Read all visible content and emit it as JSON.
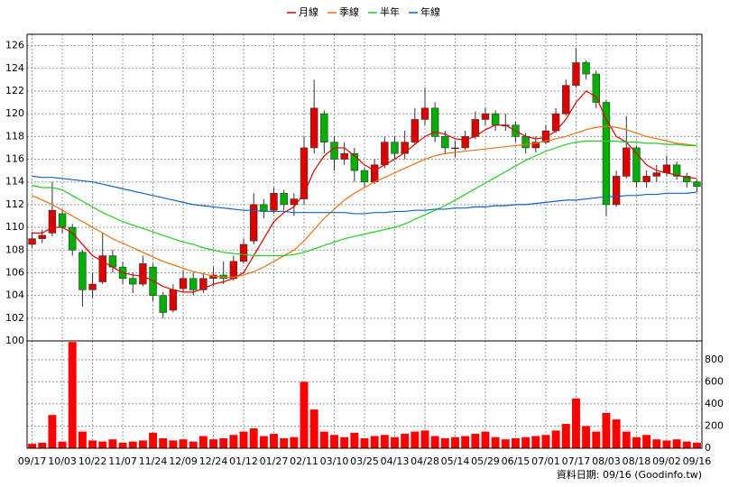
{
  "chart_data": [
    {
      "type": "candlestick",
      "categories": [
        "09/17",
        null,
        null,
        "10/03",
        null,
        null,
        "10/22",
        null,
        null,
        "11/07",
        null,
        null,
        "11/24",
        null,
        null,
        "12/09",
        null,
        null,
        "12/24",
        null,
        null,
        "01/12",
        null,
        null,
        "01/27",
        null,
        null,
        "02/11",
        null,
        null,
        "03/10",
        null,
        null,
        "03/25",
        null,
        null,
        "04/13",
        null,
        null,
        "04/28",
        null,
        null,
        "05/14",
        null,
        null,
        "05/29",
        null,
        null,
        "06/15",
        null,
        null,
        "07/01",
        null,
        null,
        "07/17",
        null,
        null,
        "08/03",
        null,
        null,
        "08/18",
        null,
        null,
        "09/02",
        null,
        null,
        "09/16"
      ],
      "ohlc": [
        [
          108.5,
          109.6,
          108.2,
          109
        ],
        [
          109,
          109.8,
          108.6,
          109.3
        ],
        [
          109.5,
          114,
          109.2,
          111.5
        ],
        [
          111.2,
          111.6,
          109.5,
          110
        ],
        [
          110,
          110.3,
          107.5,
          108
        ],
        [
          107.8,
          108,
          103,
          104.5
        ],
        [
          104.5,
          106,
          103.8,
          105
        ],
        [
          105.2,
          109.5,
          105,
          107.5
        ],
        [
          107.5,
          108,
          106,
          106.5
        ],
        [
          106.5,
          107,
          105,
          105.5
        ],
        [
          105.5,
          106,
          104.2,
          105
        ],
        [
          105,
          107.5,
          104.8,
          106.8
        ],
        [
          106.5,
          106.8,
          103.5,
          104
        ],
        [
          104,
          104.3,
          102,
          102.5
        ],
        [
          102.7,
          105,
          102.5,
          104.5
        ],
        [
          104.6,
          106.2,
          104.3,
          105.5
        ],
        [
          105.5,
          106,
          104,
          104.5
        ],
        [
          104.5,
          106,
          104.2,
          105.5
        ],
        [
          105.5,
          106.5,
          104.8,
          105.8
        ],
        [
          105.8,
          107,
          105,
          105.5
        ],
        [
          105.5,
          107.5,
          105.3,
          107
        ],
        [
          107,
          109,
          106.8,
          108.5
        ],
        [
          108.8,
          113,
          108.5,
          112
        ],
        [
          112,
          112.5,
          110.8,
          111.4
        ],
        [
          111.5,
          113.5,
          111.2,
          113
        ],
        [
          113,
          113.3,
          111.5,
          112
        ],
        [
          112,
          113,
          111,
          112.5
        ],
        [
          112.5,
          118,
          112,
          117
        ],
        [
          117,
          123,
          116.5,
          120.5
        ],
        [
          120,
          120.3,
          116.5,
          117.5
        ],
        [
          117.5,
          118,
          115,
          116
        ],
        [
          116,
          117.5,
          115.5,
          116.5
        ],
        [
          116.5,
          117,
          114,
          115
        ],
        [
          115,
          115.3,
          113.5,
          114
        ],
        [
          114,
          116,
          113.8,
          115.5
        ],
        [
          115.5,
          118,
          115.2,
          117.5
        ],
        [
          117.5,
          118,
          116,
          116.5
        ],
        [
          116.5,
          118.5,
          116,
          117.5
        ],
        [
          117.5,
          120.5,
          117.3,
          119.5
        ],
        [
          119.5,
          122.3,
          119,
          120.5
        ],
        [
          120.5,
          121,
          117.5,
          118
        ],
        [
          118,
          118.5,
          116.5,
          117
        ],
        [
          117,
          117.6,
          116.2,
          117
        ],
        [
          117,
          118.5,
          116.8,
          118
        ],
        [
          118,
          120.2,
          117.8,
          119.5
        ],
        [
          119.5,
          120.5,
          119,
          120
        ],
        [
          120,
          120.3,
          118.5,
          119
        ],
        [
          119,
          120,
          118.5,
          119
        ],
        [
          119,
          119.3,
          117.5,
          118
        ],
        [
          118,
          118.3,
          116.5,
          117
        ],
        [
          117,
          118,
          116.6,
          117.5
        ],
        [
          117.5,
          119,
          117.3,
          118.5
        ],
        [
          118.5,
          120.5,
          118.3,
          120
        ],
        [
          120,
          123,
          119.8,
          122.5
        ],
        [
          122.5,
          125.8,
          122.3,
          124.5
        ],
        [
          124.5,
          124.7,
          123,
          123.5
        ],
        [
          123.5,
          123.8,
          120.5,
          121
        ],
        [
          121,
          121.2,
          111,
          112
        ],
        [
          112,
          115,
          111.8,
          114.5
        ],
        [
          114.5,
          119.8,
          114.3,
          117
        ],
        [
          117,
          117.2,
          113.5,
          114
        ],
        [
          114,
          115,
          113.5,
          114.5
        ],
        [
          114.5,
          115.5,
          114,
          114.8
        ],
        [
          114.8,
          116.3,
          114.5,
          115.5
        ],
        [
          115.5,
          115.8,
          114.2,
          114.5
        ],
        [
          114.5,
          114.8,
          113.5,
          114
        ],
        [
          114,
          114.2,
          113.1,
          113.6
        ]
      ],
      "up_color": "#dd0000",
      "down_color": "#00b000",
      "series": [
        {
          "name": "月線",
          "color": "#e00000",
          "values": [
            109.5,
            109.5,
            110,
            110,
            109.5,
            108.5,
            107.5,
            107,
            106.5,
            106,
            105.8,
            105.7,
            105.3,
            104.8,
            104.5,
            104.3,
            104.3,
            104.6,
            105,
            105.2,
            105.5,
            106,
            107.5,
            109,
            110.5,
            111.3,
            111.8,
            113,
            115,
            116.3,
            117,
            117,
            116.3,
            115.5,
            115,
            115.5,
            116,
            116.6,
            117.3,
            118,
            118.4,
            118.2,
            117.8,
            117.7,
            118,
            118.6,
            119,
            119,
            118.5,
            118,
            117.8,
            117.9,
            118.5,
            119.5,
            121,
            122,
            121.5,
            119.5,
            118,
            117.5,
            116.5,
            115.5,
            115,
            114.8,
            114.6,
            114.4,
            114.3
          ]
        },
        {
          "name": "季線",
          "color": "#f07010",
          "values": [
            112.8,
            112.4,
            112,
            111.5,
            111,
            110.5,
            110,
            109.5,
            109,
            108.6,
            108.2,
            107.8,
            107.4,
            107,
            106.7,
            106.4,
            106.1,
            105.9,
            105.7,
            105.6,
            105.6,
            105.8,
            106.1,
            106.5,
            107,
            107.5,
            108,
            108.8,
            109.8,
            110.8,
            111.6,
            112.4,
            113,
            113.5,
            114,
            114.4,
            114.8,
            115.2,
            115.6,
            116,
            116.3,
            116.5,
            116.6,
            116.7,
            116.8,
            116.9,
            117,
            117.1,
            117.2,
            117.3,
            117.4,
            117.6,
            117.8,
            118,
            118.3,
            118.6,
            118.8,
            118.9,
            118.8,
            118.6,
            118.3,
            118,
            117.8,
            117.6,
            117.4,
            117.3,
            117.2
          ]
        },
        {
          "name": "半年",
          "color": "#20d020",
          "values": [
            113.7,
            113.5,
            113.5,
            113.3,
            112.8,
            112.3,
            111.8,
            111.3,
            110.9,
            110.5,
            110.2,
            109.9,
            109.6,
            109.3,
            109,
            108.7,
            108.5,
            108.2,
            108,
            107.8,
            107.7,
            107.6,
            107.5,
            107.5,
            107.5,
            107.5,
            107.6,
            107.8,
            108.1,
            108.4,
            108.7,
            109,
            109.2,
            109.4,
            109.6,
            109.8,
            110,
            110.3,
            110.7,
            111.1,
            111.5,
            111.9,
            112.4,
            112.9,
            113.4,
            113.9,
            114.4,
            114.9,
            115.4,
            115.9,
            116.3,
            116.7,
            117,
            117.3,
            117.5,
            117.6,
            117.6,
            117.6,
            117.6,
            117.5,
            117.5,
            117.4,
            117.4,
            117.3,
            117.3,
            117.2,
            117.2
          ]
        },
        {
          "name": "年線",
          "color": "#1060c0",
          "values": [
            114.5,
            114.4,
            114.4,
            114.3,
            114.2,
            114.1,
            114,
            113.8,
            113.6,
            113.4,
            113.2,
            113,
            112.8,
            112.6,
            112.4,
            112.2,
            112,
            111.9,
            111.8,
            111.7,
            111.6,
            111.5,
            111.5,
            111.4,
            111.4,
            111.4,
            111.3,
            111.3,
            111.3,
            111.3,
            111.3,
            111.3,
            111.2,
            111.2,
            111.3,
            111.3,
            111.4,
            111.4,
            111.5,
            111.5,
            111.6,
            111.6,
            111.7,
            111.7,
            111.8,
            111.8,
            111.9,
            111.9,
            112,
            112,
            112.1,
            112.2,
            112.3,
            112.4,
            112.4,
            112.5,
            112.6,
            112.7,
            112.7,
            112.8,
            112.8,
            112.9,
            112.9,
            113,
            113,
            113,
            113.1
          ]
        }
      ],
      "ylim": [
        100,
        127
      ],
      "yticks": [
        100,
        102,
        104,
        106,
        108,
        110,
        112,
        114,
        116,
        118,
        120,
        122,
        124,
        126
      ],
      "grid": true,
      "legend": "top"
    },
    {
      "type": "bar",
      "color": "#ff0000",
      "values": [
        40,
        50,
        300,
        60,
        960,
        150,
        70,
        60,
        80,
        50,
        60,
        70,
        140,
        90,
        70,
        80,
        60,
        110,
        80,
        90,
        120,
        150,
        180,
        110,
        130,
        90,
        100,
        600,
        350,
        150,
        120,
        100,
        140,
        90,
        110,
        120,
        100,
        130,
        150,
        160,
        110,
        90,
        100,
        110,
        130,
        150,
        100,
        80,
        90,
        100,
        110,
        120,
        160,
        220,
        450,
        200,
        150,
        320,
        260,
        150,
        100,
        120,
        80,
        70,
        80,
        60,
        50
      ],
      "ylim": [
        0,
        970
      ],
      "yticks": [
        0,
        200,
        400,
        600,
        800
      ],
      "grid": true
    }
  ],
  "source": "資料日期: 09/16 (Goodinfo.tw)"
}
